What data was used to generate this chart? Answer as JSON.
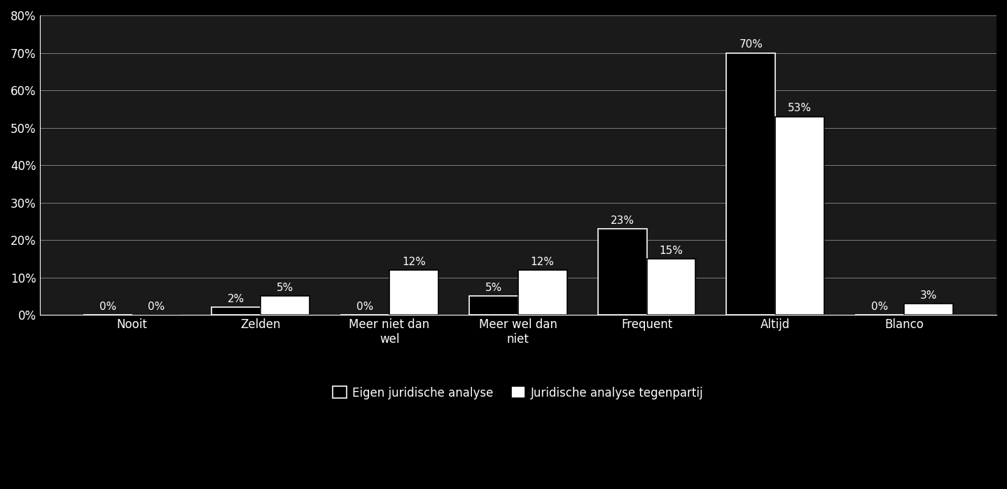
{
  "categories": [
    "Nooit",
    "Zelden",
    "Meer niet dan\nwel",
    "Meer wel dan\nniet",
    "Frequent",
    "Altijd",
    "Blanco"
  ],
  "series1_label": "Eigen juridische analyse",
  "series2_label": "Juridische analyse tegenpartij",
  "series1_values": [
    0,
    2,
    0,
    5,
    23,
    70,
    0
  ],
  "series2_values": [
    0,
    5,
    12,
    12,
    15,
    53,
    3
  ],
  "series1_color": "#000000",
  "series2_color": "#ffffff",
  "series1_edge_color": "#ffffff",
  "series2_edge_color": "#000000",
  "background_color": "#000000",
  "plot_bg_color": "#1a1a1a",
  "text_color": "#ffffff",
  "grid_color": "#ffffff",
  "ylim": [
    0,
    80
  ],
  "yticks": [
    0,
    10,
    20,
    30,
    40,
    50,
    60,
    70,
    80
  ],
  "ytick_labels": [
    "0%",
    "10%",
    "20%",
    "30%",
    "40%",
    "50%",
    "60%",
    "70%",
    "80%"
  ],
  "bar_width": 0.38,
  "tick_fontsize": 12,
  "legend_fontsize": 12,
  "annotation_fontsize": 11
}
